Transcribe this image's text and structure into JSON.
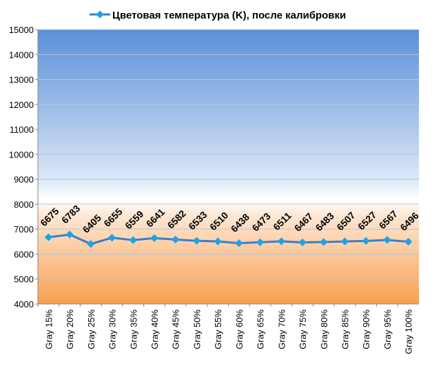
{
  "chart_data": {
    "type": "line",
    "legend": {
      "label": "Цветовая температура (K), после калибровки",
      "position": "top"
    },
    "categories": [
      "Gray 15%",
      "Gray 20%",
      "Gray 25%",
      "Gray 30%",
      "Gray 35%",
      "Gray 40%",
      "Gray 45%",
      "Gray 50%",
      "Gray 55%",
      "Gray 60%",
      "Gray 65%",
      "Gray 70%",
      "Gray 75%",
      "Gray 80%",
      "Gray 85%",
      "Gray 90%",
      "Gray 95%",
      "Gray 100%"
    ],
    "series": [
      {
        "name": "Цветовая температура (K), после калибровки",
        "values": [
          6675,
          6783,
          6405,
          6655,
          6559,
          6641,
          6582,
          6533,
          6510,
          6438,
          6473,
          6511,
          6467,
          6483,
          6507,
          6527,
          6567,
          6496
        ]
      }
    ],
    "ylim": [
      4000,
      15000
    ],
    "yticks": [
      4000,
      5000,
      6000,
      7000,
      8000,
      9000,
      10000,
      11000,
      12000,
      13000,
      14000,
      15000
    ],
    "grid": true,
    "line_color": "#3b7dc4",
    "marker_color": "#1ea3e8"
  }
}
